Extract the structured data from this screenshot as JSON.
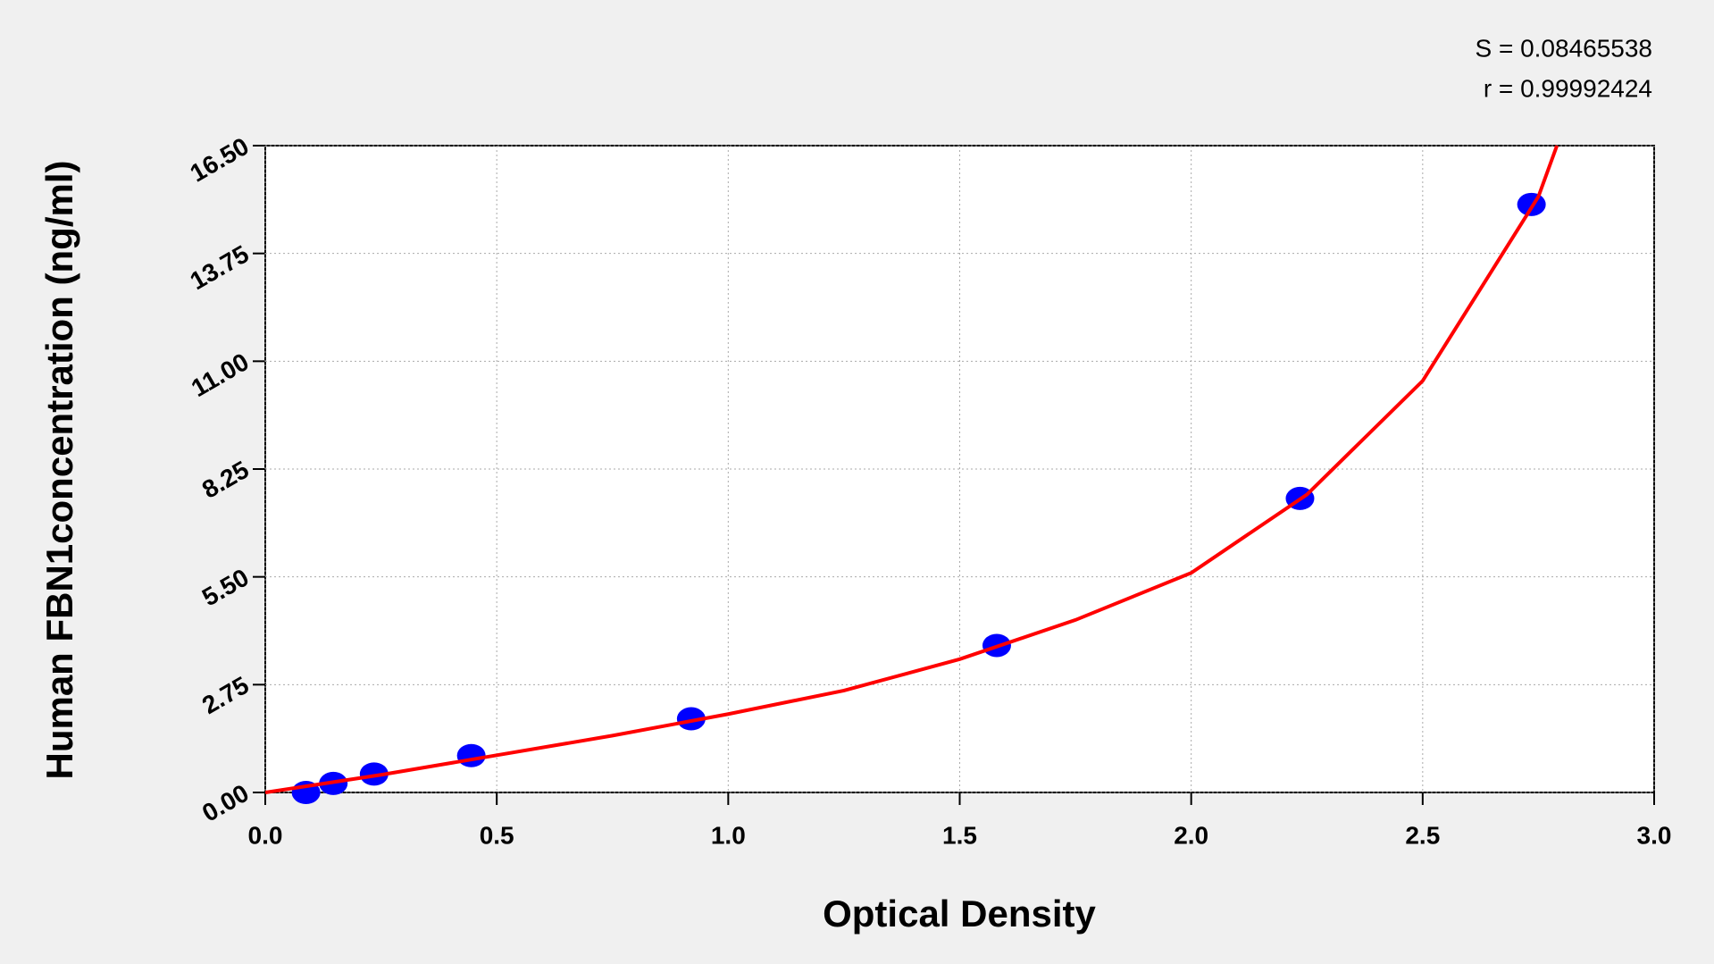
{
  "chart_data": {
    "type": "scatter",
    "annotations": [
      "S = 0.08465538",
      "r = 0.99992424"
    ],
    "x_label": "Optical Density",
    "y_label": "Human FBN1concentration (ng/ml)",
    "xlim": [
      0,
      3
    ],
    "ylim": [
      0,
      16.5
    ],
    "xticks": [
      {
        "value": 0,
        "label": "0.0"
      },
      0.5,
      {
        "value": 1,
        "label": "1.0"
      },
      1.5,
      {
        "value": 2,
        "label": "2.0"
      },
      2.5,
      {
        "value": 3,
        "label": "3.0"
      }
    ],
    "yticks": [
      {
        "value": 0,
        "label": "0.00"
      },
      2.75,
      {
        "value": 5.5,
        "label": "5.50"
      },
      8.25,
      {
        "value": 11,
        "label": "11.00"
      },
      13.75,
      {
        "value": 16.5,
        "label": "16.50"
      }
    ],
    "grid": true,
    "series": [
      {
        "type": "scatter",
        "color": "#0000ff",
        "x": [
          0.088,
          0.147,
          0.235,
          0.445,
          0.92,
          1.58,
          2.235,
          2.735
        ],
        "values": [
          0,
          0.23,
          0.47,
          0.94,
          1.88,
          3.75,
          7.5,
          15
        ]
      },
      {
        "type": "line",
        "color": "#ff0000",
        "x": [
          0,
          0.25,
          0.5,
          0.75,
          1.0,
          1.25,
          1.5,
          1.75,
          2.0,
          2.25,
          2.5,
          2.75,
          2.79
        ],
        "values": [
          0,
          0.45,
          0.95,
          1.45,
          2.0,
          2.6,
          3.4,
          4.4,
          5.6,
          7.6,
          10.5,
          15.2,
          16.5
        ]
      }
    ]
  }
}
